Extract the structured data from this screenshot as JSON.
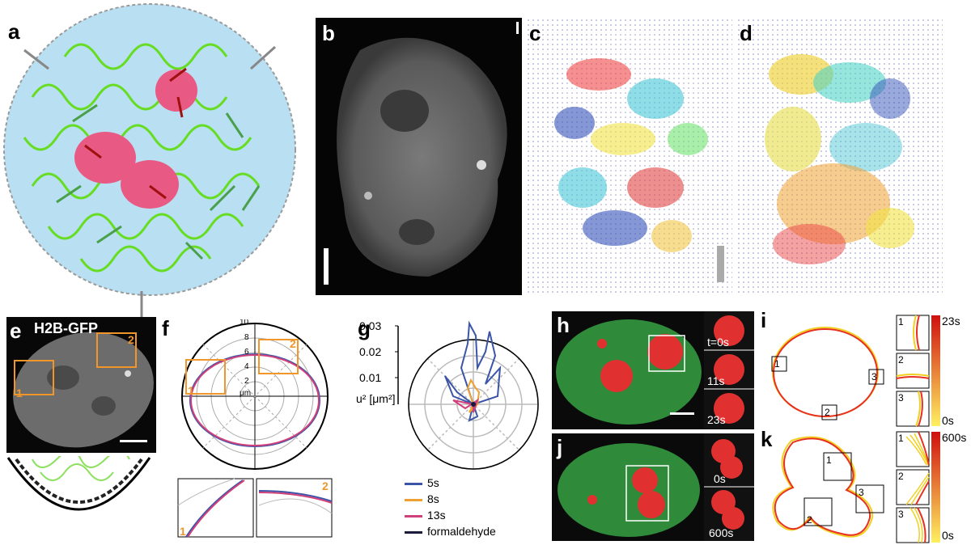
{
  "panels": {
    "a": "a",
    "b": "b",
    "c": "c",
    "d": "d",
    "e": "e",
    "f": "f",
    "g": "g",
    "h": "h",
    "i": "i",
    "j": "j",
    "k": "k"
  },
  "panel_e": {
    "label": "H2B-GFP",
    "box1": "1",
    "box2": "2"
  },
  "panel_f": {
    "ticks": [
      "10",
      "8",
      "6",
      "4",
      "2",
      "μm"
    ],
    "box1": "1",
    "box2": "2",
    "inset1": "1",
    "inset2": "2"
  },
  "panel_g": {
    "ticks": [
      "0.03",
      "0.02",
      "0.01"
    ],
    "ylabel": "u² [μm²]",
    "legend": [
      {
        "name": "5s",
        "color": "#3b55a8"
      },
      {
        "name": "8s",
        "color": "#f0a030"
      },
      {
        "name": "13s",
        "color": "#d0407a"
      },
      {
        "name": "formaldehyde",
        "color": "#1a1a3a"
      }
    ]
  },
  "panel_h": {
    "times": [
      "t=0s",
      "11s",
      "23s"
    ]
  },
  "panel_j": {
    "times": [
      "0s",
      "600s"
    ]
  },
  "panel_i": {
    "markers": [
      "1",
      "2",
      "3"
    ],
    "insets": [
      "1",
      "2",
      "3"
    ],
    "scale_max": "23s",
    "scale_min": "0s"
  },
  "panel_k": {
    "markers": [
      "1",
      "2",
      "3"
    ],
    "insets": [
      "1",
      "2",
      "3"
    ],
    "scale_max": "600s",
    "scale_min": "0s"
  }
}
